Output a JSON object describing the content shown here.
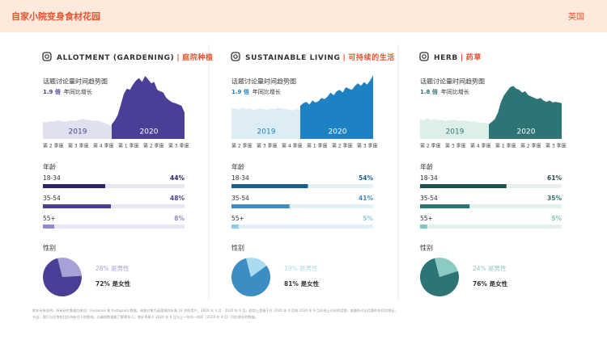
{
  "header": {
    "title": "自家小院变身食材花园",
    "region": "英国"
  },
  "trend_title": "话题讨论量时间趋势图",
  "growth_suffix": "年同比增长",
  "year_labels": [
    "2019",
    "2020"
  ],
  "quarters": [
    "第 2 季度",
    "第 3 季度",
    "第 4 季度",
    "第 1 季度",
    "第 2 季度",
    "第 3 季度"
  ],
  "age_heading": "年龄",
  "gender_heading": "性别",
  "panels": [
    {
      "title_en": "ALLOTMENT (GARDENING)",
      "title_zh": "庭院种植",
      "growth": "1.9 倍",
      "colors": {
        "dark": "#4a3f96",
        "light": "#dfe1ef",
        "bars": [
          "#2b2568",
          "#4a3f96",
          "#8f8bcc"
        ],
        "track": "#e7e8f3",
        "pie": [
          "#a6a2d8",
          "#4a3f96"
        ],
        "pct": [
          "#2b2568",
          "#4a3f96",
          "#8f8bcc"
        ]
      },
      "trend_2019": [
        26,
        25,
        27,
        26,
        28,
        27,
        26,
        27,
        28,
        27,
        29,
        30,
        29,
        28,
        27,
        28,
        26,
        24,
        22,
        20
      ],
      "trend_2020": [
        22,
        28,
        36,
        52,
        68,
        76,
        74,
        82,
        88,
        92,
        86,
        95,
        90,
        84,
        86,
        74,
        72,
        70,
        62,
        58,
        55,
        54,
        52,
        50,
        40
      ],
      "ages": [
        {
          "label": "18-34",
          "value": 44,
          "value_label": "44%"
        },
        {
          "label": "35-54",
          "value": 48,
          "value_label": "48%"
        },
        {
          "label": "55+",
          "value": 8,
          "value_label": "8%"
        }
      ],
      "gender": [
        {
          "value": 28,
          "label": "28% 是男性"
        },
        {
          "value": 72,
          "label": "72% 是女性"
        }
      ]
    },
    {
      "title_en": "SUSTAINABLE LIVING",
      "title_zh": "可持续的生活",
      "growth": "1.9 倍",
      "colors": {
        "dark": "#1d82c4",
        "light": "#dcedf5",
        "bars": [
          "#1b5e8c",
          "#3b8dc4",
          "#8dcde6"
        ],
        "track": "#e4f1f7",
        "pie": [
          "#a9dcf0",
          "#3b8dc4"
        ],
        "pct": [
          "#1b5e8c",
          "#3b8dc4",
          "#8dcde6"
        ]
      },
      "trend_2019": [
        45,
        46,
        44,
        47,
        45,
        46,
        44,
        45,
        46,
        45,
        44,
        46,
        45,
        47,
        46,
        45,
        44,
        43,
        45,
        44
      ],
      "trend_2020": [
        50,
        54,
        56,
        52,
        58,
        55,
        57,
        62,
        60,
        64,
        70,
        66,
        72,
        74,
        70,
        78,
        76,
        74,
        80,
        84,
        80,
        86,
        82,
        88,
        96
      ],
      "ages": [
        {
          "label": "18-34",
          "value": 54,
          "value_label": "54%"
        },
        {
          "label": "35-54",
          "value": 41,
          "value_label": "41%"
        },
        {
          "label": "55+",
          "value": 5,
          "value_label": "5%"
        }
      ],
      "gender": [
        {
          "value": 19,
          "label": "19% 是男性"
        },
        {
          "value": 81,
          "label": "81% 是女性"
        }
      ]
    },
    {
      "title_en": "HERB",
      "title_zh": "药草",
      "growth": "1.8 倍",
      "colors": {
        "dark": "#2d7474",
        "light": "#ddefe9",
        "bars": [
          "#1f4f4f",
          "#2d7474",
          "#80c6c0"
        ],
        "track": "#e5f2ef",
        "pie": [
          "#8ccac4",
          "#2d7474"
        ],
        "pct": [
          "#1f4f4f",
          "#2d7474",
          "#80c6c0"
        ]
      },
      "trend_2019": [
        30,
        28,
        31,
        29,
        30,
        28,
        29,
        27,
        28,
        29,
        28,
        27,
        28,
        27,
        26,
        27,
        25,
        24,
        25,
        22
      ],
      "trend_2020": [
        22,
        26,
        30,
        40,
        56,
        66,
        72,
        78,
        80,
        76,
        74,
        70,
        72,
        66,
        64,
        62,
        60,
        62,
        58,
        56,
        58,
        55,
        56,
        55,
        54
      ],
      "ages": [
        {
          "label": "18-34",
          "value": 61,
          "value_label": "61%"
        },
        {
          "label": "35-54",
          "value": 35,
          "value_label": "35%"
        },
        {
          "label": "55+",
          "value": 5,
          "value_label": "5%"
        }
      ],
      "gender": [
        {
          "value": 24,
          "label": "24% 是男性"
        },
        {
          "value": 76,
          "label": "76% 是女性"
        }
      ]
    }
  ],
  "footnote": [
    "除非另有说明，所有研究数据均来自：Facebook 和 Instagram 数据，调查对象为英国境内年满 18 岁的用户，2019 年 4 月 - 2020 年 9 月。趋势上是基于在 2020 年 4 月和 2020 年 9 月间线上讨论的话题，查看所讨论话题的年同比增长。",
    "节日，我们与往常相比仍持有往下的影响，以确保数据能了解更多人。增长率基于 2020 年 9 月与上一年同一时间（2019 年 9 月）同比增长的数据。"
  ]
}
